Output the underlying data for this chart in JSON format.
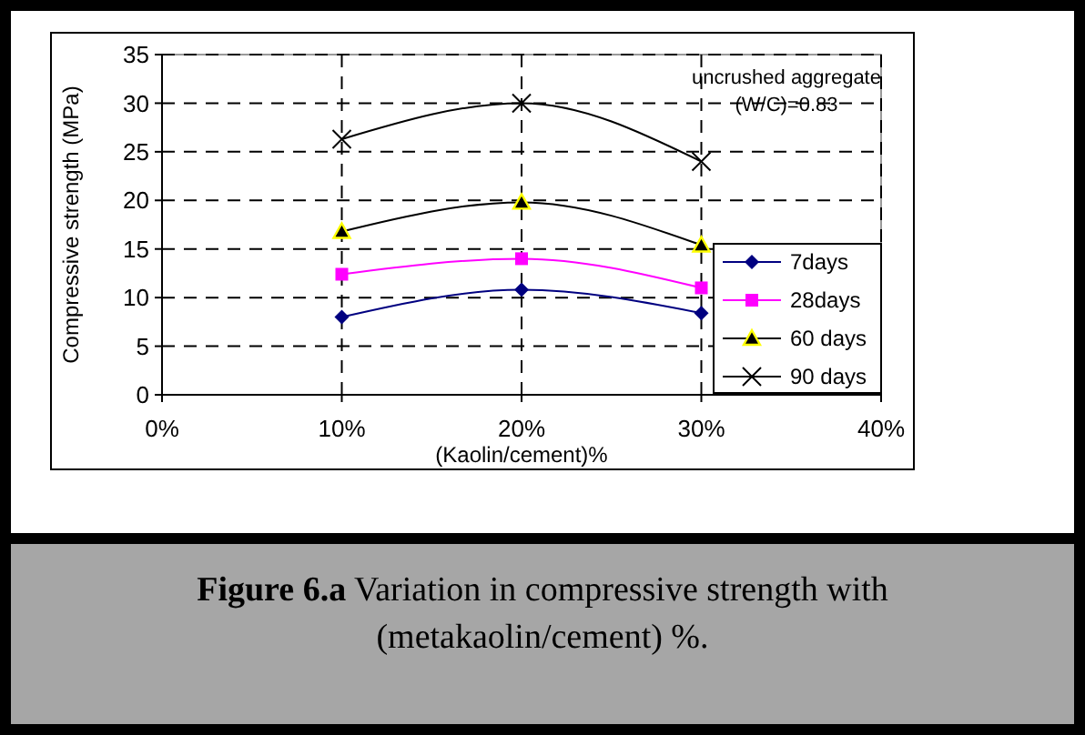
{
  "chart_data": {
    "type": "line",
    "title": "Figure 6.a Variation in compressive strength with (metakaolin/cement) %.",
    "xlabel": "(Kaolin/cement)%",
    "ylabel": "Compressive strength (MPa)",
    "x": [
      10,
      20,
      30
    ],
    "series": [
      {
        "name": "7days",
        "color": "#000080",
        "marker": "diamond",
        "values": [
          8,
          10.8,
          8.4
        ]
      },
      {
        "name": "28days",
        "color": "#ff00ff",
        "marker": "square",
        "values": [
          12.4,
          14,
          11
        ]
      },
      {
        "name": "60 days",
        "color": "#000000",
        "marker": "triangle",
        "values": [
          16.8,
          19.8,
          15.4
        ]
      },
      {
        "name": "90 days",
        "color": "#000000",
        "marker": "cross",
        "values": [
          26.3,
          30,
          24
        ]
      }
    ],
    "xlim": [
      0,
      40
    ],
    "xticks": [
      {
        "value": 0,
        "label": "0%"
      },
      {
        "value": 10,
        "label": "10%"
      },
      {
        "value": 20,
        "label": "20%"
      },
      {
        "value": 30,
        "label": "30%"
      },
      {
        "value": 40,
        "label": "40%"
      }
    ],
    "ylim": [
      0,
      35
    ],
    "yticks": [
      0,
      5,
      10,
      15,
      20,
      25,
      30,
      35
    ],
    "grid": true,
    "legend": "right",
    "line_style": "solid",
    "annotations": [
      "uncrushed aggregate",
      "(W/C)=0.83"
    ]
  }
}
